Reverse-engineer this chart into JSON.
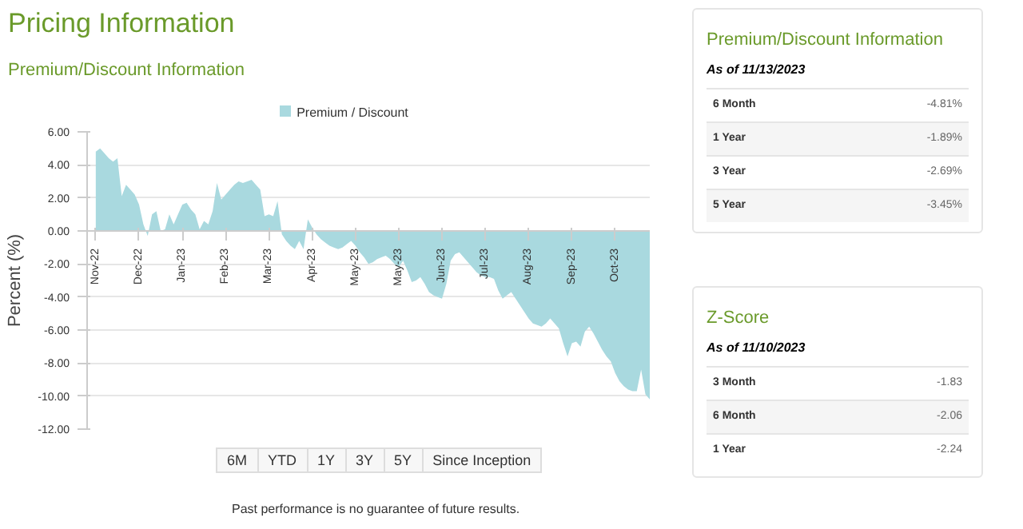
{
  "chart_data": [
    {
      "type": "area",
      "title": "Pricing Information",
      "subtitle": "Premium/Discount Information",
      "ylabel": "Percent (%)",
      "categories": [
        "Nov-22",
        null,
        null,
        null,
        null,
        null,
        null,
        null,
        null,
        null,
        "Dec-22",
        null,
        null,
        null,
        null,
        null,
        null,
        null,
        null,
        null,
        "Jan-23",
        null,
        null,
        null,
        null,
        null,
        null,
        null,
        null,
        null,
        "Feb-23",
        null,
        null,
        null,
        null,
        null,
        null,
        null,
        null,
        null,
        "Mar-23",
        null,
        null,
        null,
        null,
        null,
        null,
        null,
        null,
        null,
        "Apr-23",
        null,
        null,
        null,
        null,
        null,
        null,
        null,
        null,
        null,
        "May-23",
        null,
        null,
        null,
        null,
        null,
        null,
        null,
        null,
        null,
        "May-23",
        null,
        null,
        null,
        null,
        null,
        null,
        null,
        null,
        null,
        "Jun-23",
        null,
        null,
        null,
        null,
        null,
        null,
        null,
        null,
        null,
        "Jul-23",
        null,
        null,
        null,
        null,
        null,
        null,
        null,
        null,
        null,
        "Aug-23",
        null,
        null,
        null,
        null,
        null,
        null,
        null,
        null,
        null,
        "Sep-23",
        null,
        null,
        null,
        null,
        null,
        null,
        null,
        null,
        null,
        "Oct-23",
        null,
        null,
        null,
        null,
        null,
        null,
        null,
        null
      ],
      "series": [
        {
          "name": "Premium / Discount",
          "color": "#a9d9df",
          "values": [
            4.8,
            5.0,
            4.7,
            4.4,
            4.2,
            4.4,
            2.1,
            2.8,
            2.5,
            2.2,
            1.6,
            0.4,
            -0.3,
            1.0,
            1.2,
            0,
            0.1,
            1.0,
            0.4,
            1.0,
            1.6,
            1.7,
            1.3,
            1.0,
            0.1,
            0.6,
            0.4,
            1.2,
            2.9,
            1.9,
            2.2,
            2.5,
            2.8,
            3.0,
            2.9,
            3.0,
            3.1,
            2.8,
            2.5,
            0.9,
            1.0,
            0.9,
            1.8,
            -0.2,
            -0.6,
            -0.9,
            -1.1,
            -0.6,
            -1.1,
            0.7,
            0.2,
            -0.2,
            -0.5,
            -0.7,
            -0.9,
            -1.0,
            -1.1,
            -1.0,
            -0.8,
            -0.6,
            -0.9,
            -1.3,
            -1.6,
            -2.0,
            -1.9,
            -1.7,
            -1.6,
            -1.5,
            -1.7,
            -2.0,
            -2.2,
            -1.8,
            -2.4,
            -3.1,
            -3.0,
            -2.8,
            -3.2,
            -3.7,
            -3.9,
            -4.0,
            -4.1,
            -3.2,
            -1.8,
            -1.4,
            -1.3,
            -1.6,
            -1.9,
            -2.2,
            -2.5,
            -2.7,
            -2.8,
            -2.8,
            -2.9,
            -3.6,
            -4.1,
            -3.9,
            -3.7,
            -4.1,
            -4.5,
            -4.9,
            -5.3,
            -5.6,
            -5.7,
            -5.8,
            -5.6,
            -5.3,
            -5.6,
            -5.9,
            -6.8,
            -7.6,
            -6.8,
            -6.7,
            -7.0,
            -6.1,
            -5.8,
            -6.2,
            -6.7,
            -7.2,
            -7.6,
            -7.9,
            -8.6,
            -9.1,
            -9.4,
            -9.6,
            -9.7,
            -9.7,
            -8.4,
            -9.9,
            -10.2
          ]
        }
      ],
      "ylim": [
        -12,
        6
      ],
      "yticks": [
        {
          "value": 6,
          "label": "6.00"
        },
        {
          "value": 4,
          "label": "4.00"
        },
        {
          "value": 2,
          "label": "2.00"
        },
        {
          "value": 0,
          "label": "0.00"
        },
        {
          "value": -2,
          "label": "-2.00"
        },
        {
          "value": -4,
          "label": "-4.00"
        },
        {
          "value": -6,
          "label": "-6.00"
        },
        {
          "value": -8,
          "label": "-8.00"
        },
        {
          "value": -10,
          "label": "-10.00"
        },
        {
          "value": -12,
          "label": "-12.00"
        }
      ],
      "grid": "y",
      "legend": "top",
      "annotations": [
        "6M",
        "YTD",
        "1Y",
        "3Y",
        "5Y",
        "Since Inception",
        "Past performance is no guarantee of future results."
      ]
    },
    {
      "type": "other",
      "title": "Premium/Discount Information",
      "subtitle": "As of 11/13/2023",
      "categories": [
        "6 Month",
        "1 Year",
        "3 Year",
        "5 Year"
      ],
      "values": [
        -4.81,
        -1.89,
        -2.69,
        -3.45
      ],
      "value_labels": [
        "-4.81%",
        "-1.89%",
        "-2.69%",
        "-3.45%"
      ]
    },
    {
      "type": "other",
      "title": "Z-Score",
      "subtitle": "As of 11/10/2023",
      "categories": [
        "3 Month",
        "6 Month",
        "1 Year"
      ],
      "values": [
        -1.83,
        -2.06,
        -2.24
      ],
      "data_labels": true
    }
  ]
}
